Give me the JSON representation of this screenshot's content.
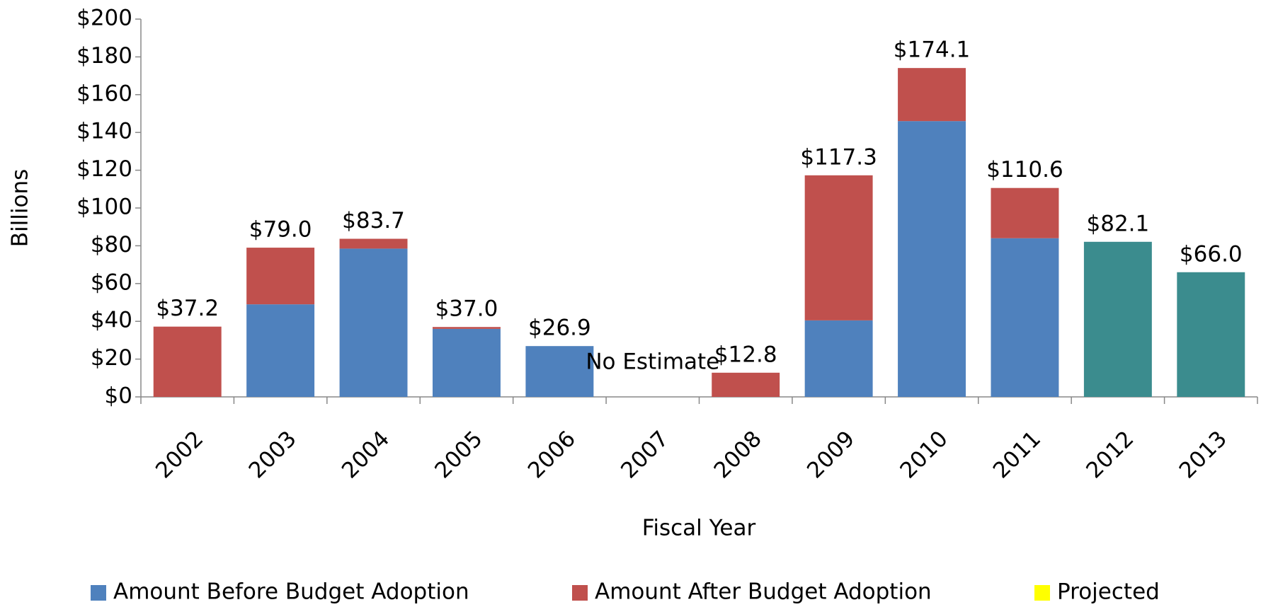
{
  "chart_data": {
    "type": "stacked_bar",
    "x_label": "Fiscal Year",
    "y_label": "Billions",
    "categories": [
      "2002",
      "2003",
      "2004",
      "2005",
      "2006",
      "2007",
      "2008",
      "2009",
      "2010",
      "2011",
      "2012",
      "2013"
    ],
    "series": [
      {
        "name": "Amount Before Budget Adoption",
        "color": "#4f81bd",
        "values": [
          null,
          49.0,
          78.5,
          36.0,
          26.9,
          null,
          null,
          40.5,
          146.0,
          84.0,
          null,
          null
        ]
      },
      {
        "name": "Amount After Budget Adoption",
        "color": "#c0504d",
        "values": [
          37.2,
          30.0,
          5.2,
          1.0,
          null,
          null,
          12.8,
          76.8,
          28.1,
          26.6,
          null,
          null
        ]
      },
      {
        "name": "Projected",
        "color": "#3b8c8e",
        "legend_color": "#ffff00",
        "values": [
          null,
          null,
          null,
          null,
          null,
          null,
          null,
          null,
          null,
          null,
          82.1,
          66.0
        ]
      }
    ],
    "total_labels": [
      "$37.2",
      "$79.0",
      "$83.7",
      "$37.0",
      "$26.9",
      "No Estimate",
      "$12.8",
      "$117.3",
      "$174.1",
      "$110.6",
      "$82.1",
      "$66.0"
    ],
    "ylim": [
      0,
      200
    ],
    "yticks": [
      {
        "value": 0,
        "label": "$0"
      },
      {
        "value": 20,
        "label": "$20"
      },
      {
        "value": 40,
        "label": "$40"
      },
      {
        "value": 60,
        "label": "$60"
      },
      {
        "value": 80,
        "label": "$80"
      },
      {
        "value": 100,
        "label": "$100"
      },
      {
        "value": 120,
        "label": "$120"
      },
      {
        "value": 140,
        "label": "$140"
      },
      {
        "value": 160,
        "label": "$160"
      },
      {
        "value": 180,
        "label": "$180"
      },
      {
        "value": 200,
        "label": "$200"
      }
    ],
    "grid": false,
    "legend": "bottom"
  }
}
